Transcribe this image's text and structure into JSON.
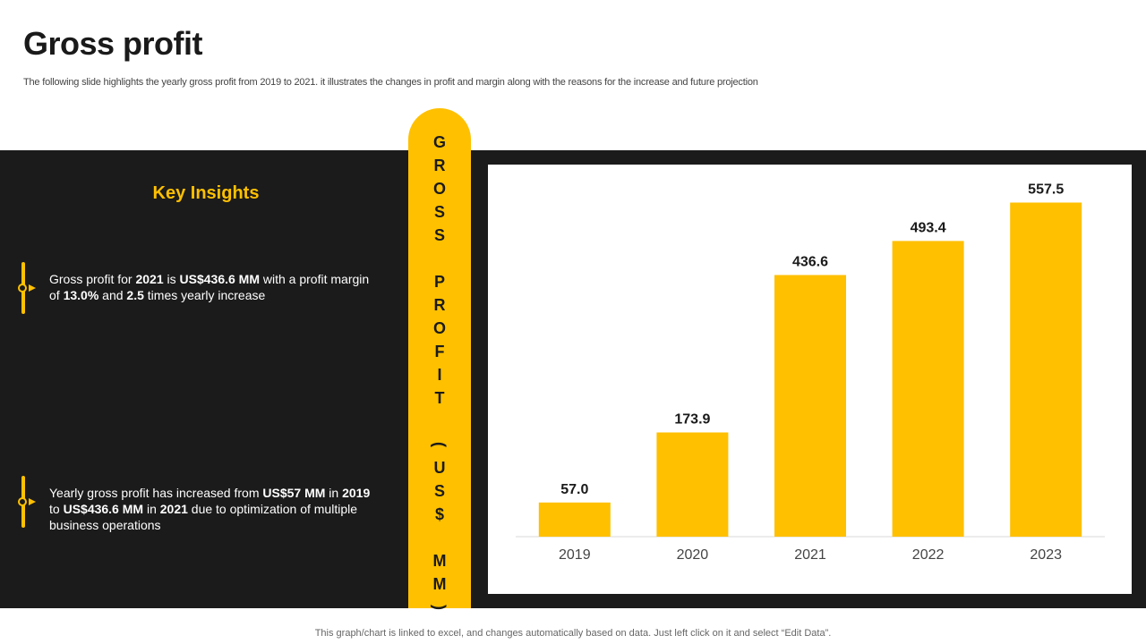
{
  "slide": {
    "title": "Gross profit",
    "subtitle": "The following slide highlights the yearly gross profit from 2019 to  2021. it illustrates the changes in profit and margin along with the reasons  for the increase and future projection",
    "footer": "This graph/chart is linked to excel,  and changes automatically based on data. Just left click on it and select “Edit Data”."
  },
  "insights": {
    "heading": "Key Insights",
    "items": [
      {
        "parts": [
          {
            "t": "Gross profit for ",
            "b": false
          },
          {
            "t": "2021",
            "b": true
          },
          {
            "t": " is ",
            "b": false
          },
          {
            "t": "US$436.6 MM",
            "b": true
          },
          {
            "t": " with a profit margin of ",
            "b": false
          },
          {
            "t": "13.0%",
            "b": true
          },
          {
            "t": " and ",
            "b": false
          },
          {
            "t": "2.5",
            "b": true
          },
          {
            "t": " times yearly increase",
            "b": false
          }
        ]
      },
      {
        "parts": [
          {
            "t": "Yearly  gross profit has increased from ",
            "b": false
          },
          {
            "t": "US$57 MM",
            "b": true
          },
          {
            "t": " in ",
            "b": false
          },
          {
            "t": "2019",
            "b": true
          },
          {
            "t": " to ",
            "b": false
          },
          {
            "t": "US$436.6 MM",
            "b": true
          },
          {
            "t": " in ",
            "b": false
          },
          {
            "t": "2021",
            "b": true
          },
          {
            "t": " due to optimization of multiple business operations",
            "b": false
          }
        ]
      }
    ]
  },
  "colors": {
    "accent": "#ffc000",
    "dark": "#1b1b1b"
  },
  "chart_data": {
    "type": "bar",
    "title": "",
    "ylabel": "GROSS PROFIT (US$ MM)",
    "categories": [
      "2019",
      "2020",
      "2021",
      "2022",
      "2023"
    ],
    "values": [
      57.0,
      173.9,
      436.6,
      493.4,
      557.5
    ],
    "value_labels": [
      "57.0",
      "173.9",
      "436.6",
      "493.4",
      "557.5"
    ],
    "ylim": [
      0,
      600
    ],
    "grid": false,
    "legend": "none",
    "bar_color": "#ffc000"
  }
}
